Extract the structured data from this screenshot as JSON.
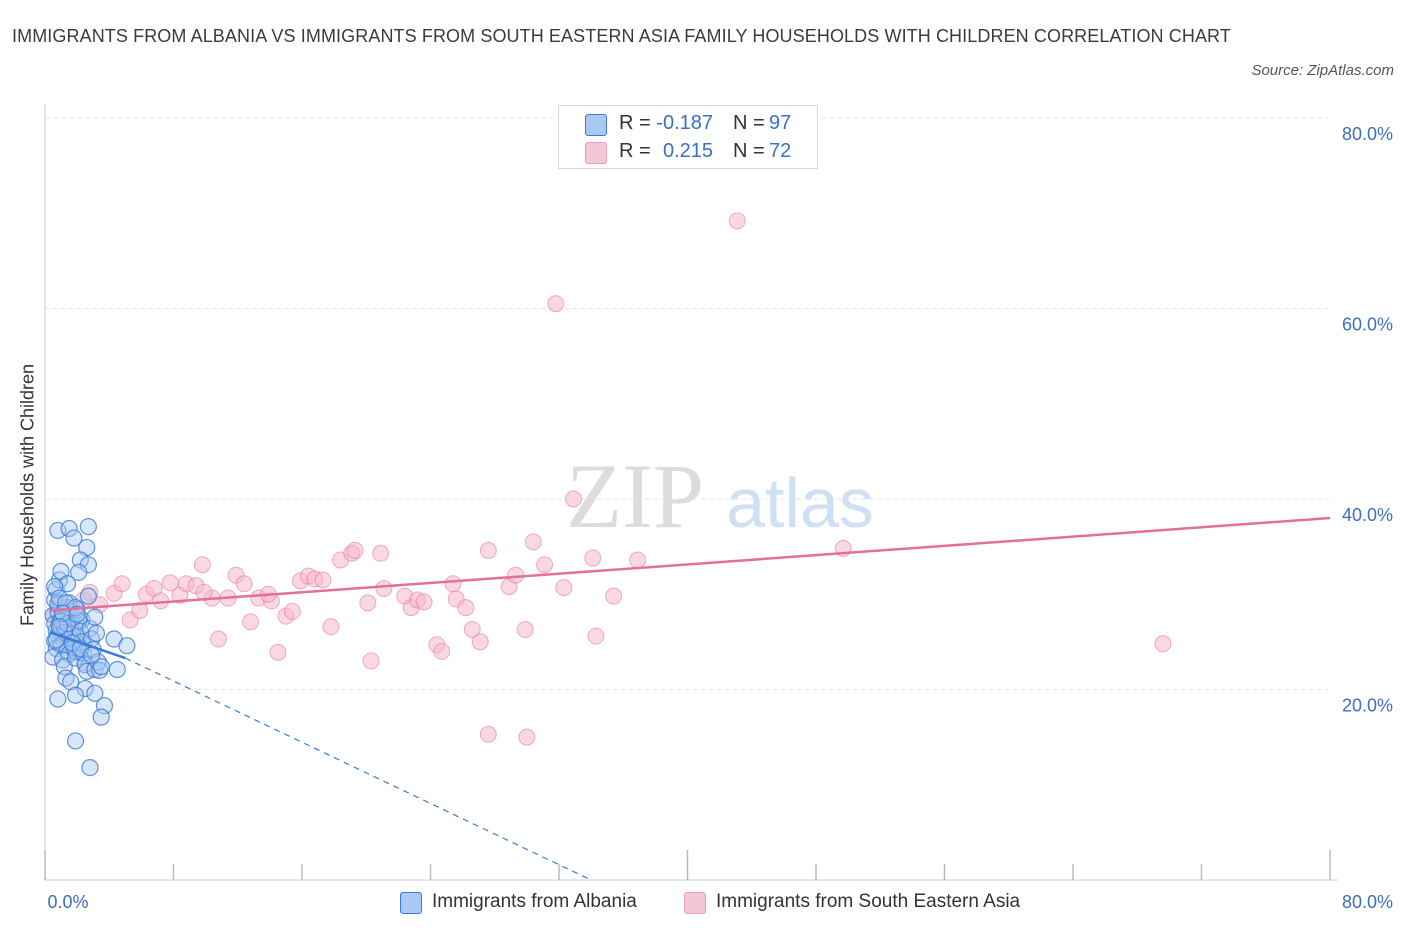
{
  "title": "IMMIGRANTS FROM ALBANIA VS IMMIGRANTS FROM SOUTH EASTERN ASIA FAMILY HOUSEHOLDS WITH CHILDREN CORRELATION CHART",
  "source": "Source: ZipAtlas.com",
  "watermark": {
    "zip": "ZIP",
    "atlas": "atlas"
  },
  "colors": {
    "albania": "#3a7bd5",
    "albania_fill": "#a9c8f2",
    "sea": "#e2709a",
    "sea_fill": "#f5b8cc",
    "value_text": "#3a6fc4"
  },
  "legend": {
    "albania": {
      "r_label": "R =",
      "r_value": "-0.187",
      "n_label": "N =",
      "n_value": "97"
    },
    "sea": {
      "r_label": "R =",
      "r_value": "0.215",
      "n_label": "N =",
      "n_value": "72"
    }
  },
  "chart_data": {
    "type": "scatter",
    "title": "IMMIGRANTS FROM ALBANIA VS IMMIGRANTS FROM SOUTH EASTERN ASIA FAMILY HOUSEHOLDS WITH CHILDREN CORRELATION CHART",
    "xlabel": "",
    "ylabel": "Family Households with Children",
    "xlim": [
      0,
      80
    ],
    "ylim": [
      0,
      80
    ],
    "x_tick_labels": [
      "0.0%",
      "80.0%"
    ],
    "y_tick_labels": [
      "20.0%",
      "40.0%",
      "60.0%",
      "80.0%"
    ],
    "y_ticks": [
      20,
      40,
      60,
      80
    ],
    "series": [
      {
        "name": "Immigrants from Albania",
        "color": "#3a7bd5",
        "r": -0.187,
        "n": 97,
        "trend": {
          "x0": 0.3,
          "y0": 26.0,
          "x1": 5.0,
          "y1": 23.3,
          "x1_dash": 34.0,
          "y1_dash": 0.0
        },
        "points": [
          [
            0.5,
            27.8
          ],
          [
            0.6,
            26.9
          ],
          [
            0.7,
            26.2
          ],
          [
            0.8,
            25.7
          ],
          [
            0.9,
            27.1
          ],
          [
            1.0,
            26.5
          ],
          [
            1.1,
            25.4
          ],
          [
            1.2,
            24.8
          ],
          [
            1.3,
            27.4
          ],
          [
            1.4,
            26.0
          ],
          [
            0.6,
            25.1
          ],
          [
            0.7,
            24.3
          ],
          [
            0.8,
            28.2
          ],
          [
            0.9,
            28.8
          ],
          [
            1.0,
            24.6
          ],
          [
            1.1,
            27.9
          ],
          [
            1.2,
            26.7
          ],
          [
            1.3,
            25.9
          ],
          [
            1.4,
            24.1
          ],
          [
            1.5,
            23.7
          ],
          [
            1.6,
            26.3
          ],
          [
            1.7,
            27.6
          ],
          [
            1.8,
            25.2
          ],
          [
            1.9,
            24.0
          ],
          [
            2.0,
            26.8
          ],
          [
            2.1,
            25.5
          ],
          [
            2.2,
            23.9
          ],
          [
            2.3,
            27.3
          ],
          [
            2.4,
            24.7
          ],
          [
            2.5,
            22.8
          ],
          [
            0.5,
            23.4
          ],
          [
            0.6,
            29.4
          ],
          [
            0.7,
            30.5
          ],
          [
            0.8,
            29.0
          ],
          [
            0.9,
            31.5
          ],
          [
            1.0,
            32.4
          ],
          [
            1.1,
            23.1
          ],
          [
            1.2,
            22.4
          ],
          [
            1.3,
            21.2
          ],
          [
            1.4,
            28.6
          ],
          [
            1.5,
            29.1
          ],
          [
            1.6,
            27.0
          ],
          [
            1.7,
            25.8
          ],
          [
            1.8,
            24.4
          ],
          [
            1.9,
            23.3
          ],
          [
            2.0,
            28.4
          ],
          [
            2.1,
            27.2
          ],
          [
            2.2,
            26.1
          ],
          [
            2.3,
            25.0
          ],
          [
            2.4,
            23.8
          ],
          [
            2.5,
            22.6
          ],
          [
            2.6,
            21.9
          ],
          [
            2.7,
            29.8
          ],
          [
            2.8,
            26.4
          ],
          [
            2.9,
            25.3
          ],
          [
            3.0,
            24.2
          ],
          [
            3.1,
            22.1
          ],
          [
            3.2,
            25.9
          ],
          [
            3.3,
            22.9
          ],
          [
            3.4,
            22.0
          ],
          [
            0.8,
            36.7
          ],
          [
            1.5,
            36.9
          ],
          [
            2.7,
            37.1
          ],
          [
            1.8,
            35.9
          ],
          [
            2.6,
            34.9
          ],
          [
            2.2,
            33.6
          ],
          [
            2.7,
            33.1
          ],
          [
            1.4,
            31.1
          ],
          [
            2.1,
            32.3
          ],
          [
            0.6,
            30.8
          ],
          [
            0.9,
            29.6
          ],
          [
            1.3,
            29.1
          ],
          [
            1.9,
            28.6
          ],
          [
            3.1,
            27.6
          ],
          [
            4.3,
            25.3
          ],
          [
            5.1,
            24.6
          ],
          [
            3.5,
            22.4
          ],
          [
            4.5,
            22.1
          ],
          [
            1.6,
            20.8
          ],
          [
            2.5,
            20.1
          ],
          [
            3.1,
            19.6
          ],
          [
            0.8,
            19.0
          ],
          [
            1.9,
            19.4
          ],
          [
            3.7,
            18.3
          ],
          [
            3.5,
            17.1
          ],
          [
            1.9,
            14.6
          ],
          [
            2.8,
            11.8
          ],
          [
            1.0,
            27.2
          ],
          [
            1.2,
            26.0
          ],
          [
            0.7,
            25.2
          ],
          [
            1.7,
            24.9
          ],
          [
            2.2,
            24.3
          ],
          [
            2.9,
            23.6
          ],
          [
            1.4,
            26.9
          ],
          [
            1.1,
            28.0
          ],
          [
            2.0,
            27.9
          ],
          [
            0.9,
            26.6
          ]
        ]
      },
      {
        "name": "Immigrants from South Eastern Asia",
        "color": "#e2709a",
        "r": 0.215,
        "n": 72,
        "trend": {
          "x0": 0.3,
          "y0": 28.3,
          "x1": 80.0,
          "y1": 38.0
        },
        "points": [
          [
            43.1,
            69.2
          ],
          [
            31.8,
            60.5
          ],
          [
            32.9,
            40.0
          ],
          [
            0.6,
            27.7
          ],
          [
            1.1,
            27.1
          ],
          [
            1.6,
            28.0
          ],
          [
            2.4,
            29.4
          ],
          [
            2.8,
            30.2
          ],
          [
            3.4,
            28.9
          ],
          [
            4.3,
            30.1
          ],
          [
            4.8,
            31.1
          ],
          [
            5.3,
            27.3
          ],
          [
            5.9,
            28.3
          ],
          [
            6.3,
            30.0
          ],
          [
            6.8,
            30.6
          ],
          [
            7.2,
            29.3
          ],
          [
            7.8,
            31.2
          ],
          [
            8.4,
            29.9
          ],
          [
            8.8,
            31.1
          ],
          [
            9.4,
            30.9
          ],
          [
            9.8,
            33.1
          ],
          [
            10.4,
            29.6
          ],
          [
            10.8,
            25.3
          ],
          [
            11.4,
            29.6
          ],
          [
            11.9,
            32.0
          ],
          [
            12.4,
            31.1
          ],
          [
            12.8,
            27.1
          ],
          [
            13.3,
            29.6
          ],
          [
            14.1,
            29.3
          ],
          [
            14.5,
            23.9
          ],
          [
            15.0,
            27.7
          ],
          [
            15.4,
            28.2
          ],
          [
            15.9,
            31.4
          ],
          [
            16.4,
            31.9
          ],
          [
            16.8,
            31.6
          ],
          [
            17.3,
            31.5
          ],
          [
            17.8,
            26.6
          ],
          [
            18.4,
            33.6
          ],
          [
            19.1,
            34.3
          ],
          [
            19.3,
            34.6
          ],
          [
            20.1,
            29.1
          ],
          [
            20.3,
            23.0
          ],
          [
            20.9,
            34.3
          ],
          [
            21.1,
            30.6
          ],
          [
            22.4,
            29.8
          ],
          [
            22.8,
            28.6
          ],
          [
            23.2,
            29.4
          ],
          [
            23.6,
            29.2
          ],
          [
            24.4,
            24.7
          ],
          [
            24.7,
            24.0
          ],
          [
            25.4,
            31.1
          ],
          [
            25.6,
            29.5
          ],
          [
            26.2,
            28.6
          ],
          [
            26.6,
            26.3
          ],
          [
            27.1,
            25.0
          ],
          [
            27.6,
            34.6
          ],
          [
            27.6,
            15.3
          ],
          [
            28.9,
            30.8
          ],
          [
            29.3,
            32.0
          ],
          [
            29.9,
            26.3
          ],
          [
            30.4,
            35.5
          ],
          [
            31.1,
            33.1
          ],
          [
            32.3,
            30.7
          ],
          [
            34.1,
            33.8
          ],
          [
            34.3,
            25.6
          ],
          [
            35.4,
            29.8
          ],
          [
            36.9,
            33.6
          ],
          [
            49.7,
            34.8
          ],
          [
            69.6,
            24.8
          ],
          [
            30.0,
            15.0
          ],
          [
            13.9,
            30.0
          ],
          [
            9.9,
            30.2
          ]
        ]
      }
    ]
  },
  "bottom_legend": {
    "albania_label": "Immigrants from Albania",
    "sea_label": "Immigrants from South Eastern Asia"
  }
}
